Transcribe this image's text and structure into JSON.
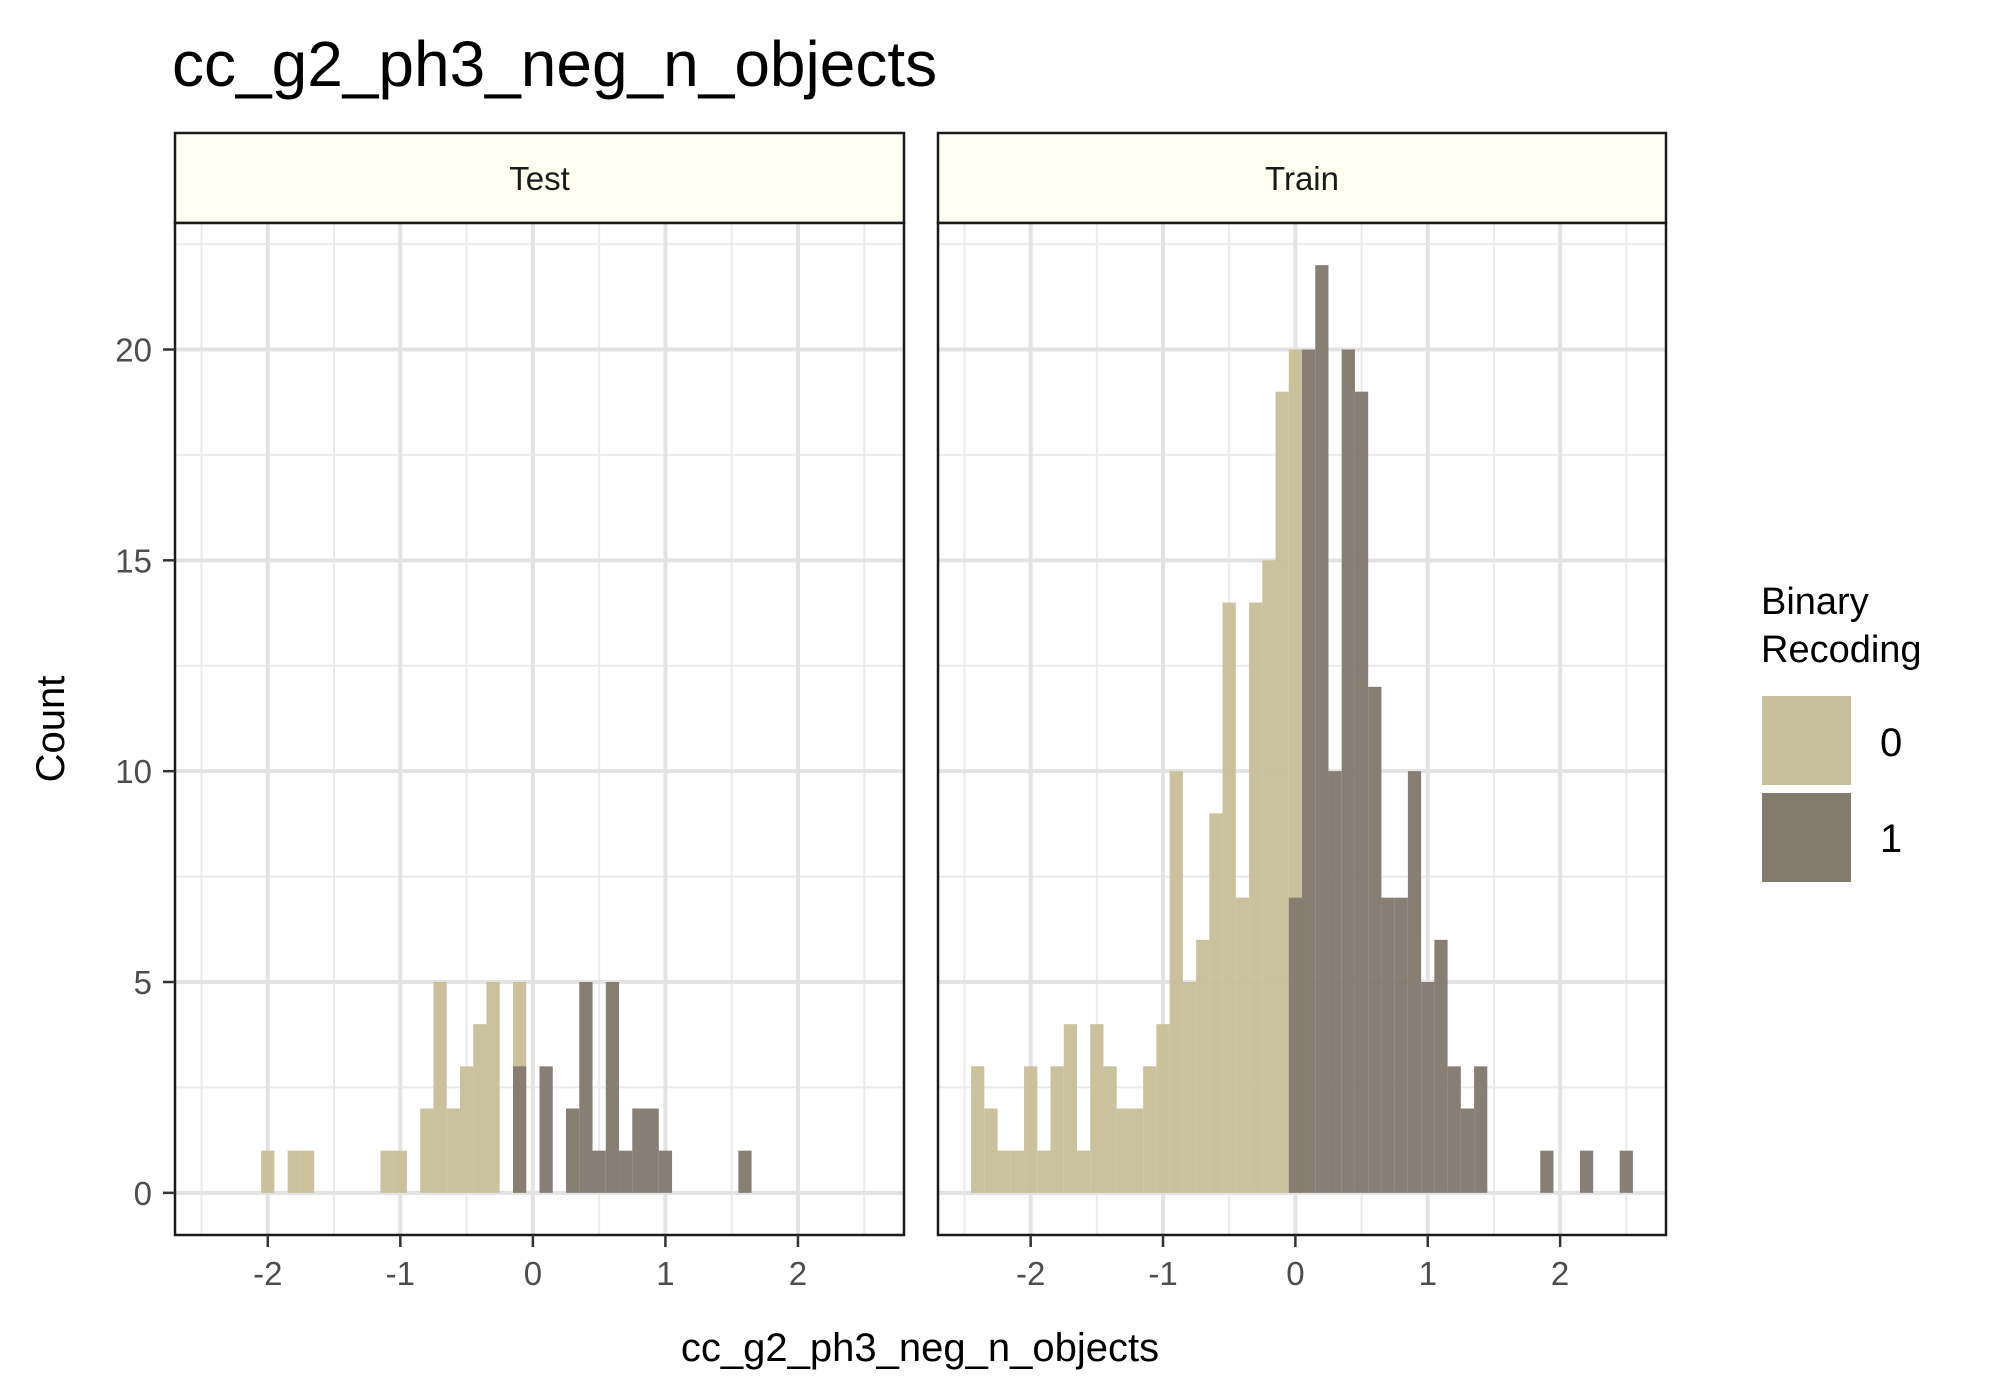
{
  "chart_data": {
    "type": "histogram",
    "title": "cc_g2_ph3_neg_n_objects",
    "xlabel": "cc_g2_ph3_neg_n_objects",
    "ylabel": "Count",
    "xlim": [
      -2.7,
      2.8
    ],
    "ylim": [
      -1,
      23
    ],
    "x_ticks": [
      -2,
      -1,
      0,
      1,
      2
    ],
    "x_tick_labels": [
      "-2",
      "-1",
      "0",
      "1",
      "2"
    ],
    "y_ticks": [
      0,
      5,
      10,
      15,
      20
    ],
    "y_tick_labels": [
      "0",
      "5",
      "10",
      "15",
      "20"
    ],
    "bin_width": 0.1,
    "grid": true,
    "legend": {
      "title_lines": [
        "Binary",
        "Recoding"
      ],
      "position": "right",
      "entries": [
        {
          "label": "0",
          "color": "#c8c09a"
        },
        {
          "label": "1",
          "color": "#847b6f"
        }
      ]
    },
    "panels": [
      {
        "label": "Test",
        "series": [
          {
            "name": "0",
            "color": "#c8c09a",
            "x_start": [
              -2.05,
              -1.85,
              -1.75,
              -1.15,
              -1.05,
              -0.85,
              -0.75,
              -0.65,
              -0.55,
              -0.45,
              -0.35,
              -0.15
            ],
            "counts": [
              1,
              1,
              1,
              1,
              1,
              2,
              5,
              2,
              3,
              4,
              5,
              5
            ]
          },
          {
            "name": "1",
            "color": "#847b6f",
            "x_start": [
              -0.15,
              0.05,
              0.25,
              0.35,
              0.45,
              0.55,
              0.65,
              0.75,
              0.85,
              0.95,
              1.55
            ],
            "counts": [
              3,
              3,
              2,
              5,
              1,
              5,
              1,
              2,
              2,
              1,
              1
            ]
          }
        ]
      },
      {
        "label": "Train",
        "series": [
          {
            "name": "0",
            "color": "#c8c09a",
            "x_start": [
              -2.45,
              -2.35,
              -2.25,
              -2.15,
              -2.05,
              -1.95,
              -1.85,
              -1.75,
              -1.65,
              -1.55,
              -1.45,
              -1.35,
              -1.25,
              -1.15,
              -1.05,
              -0.95,
              -0.85,
              -0.75,
              -0.65,
              -0.55,
              -0.45,
              -0.35,
              -0.25,
              -0.15,
              -0.05
            ],
            "counts": [
              3,
              2,
              1,
              1,
              3,
              1,
              3,
              4,
              1,
              4,
              3,
              2,
              2,
              3,
              4,
              10,
              5,
              6,
              9,
              14,
              7,
              14,
              15,
              19,
              20
            ]
          },
          {
            "name": "1",
            "color": "#847b6f",
            "x_start": [
              -0.05,
              0.05,
              0.15,
              0.25,
              0.35,
              0.45,
              0.55,
              0.65,
              0.75,
              0.85,
              0.95,
              1.05,
              1.15,
              1.25,
              1.35,
              1.85,
              2.15,
              2.45
            ],
            "counts": [
              7,
              20,
              22,
              10,
              20,
              19,
              12,
              7,
              7,
              10,
              5,
              6,
              3,
              2,
              3,
              1,
              1,
              1
            ]
          }
        ]
      }
    ]
  }
}
